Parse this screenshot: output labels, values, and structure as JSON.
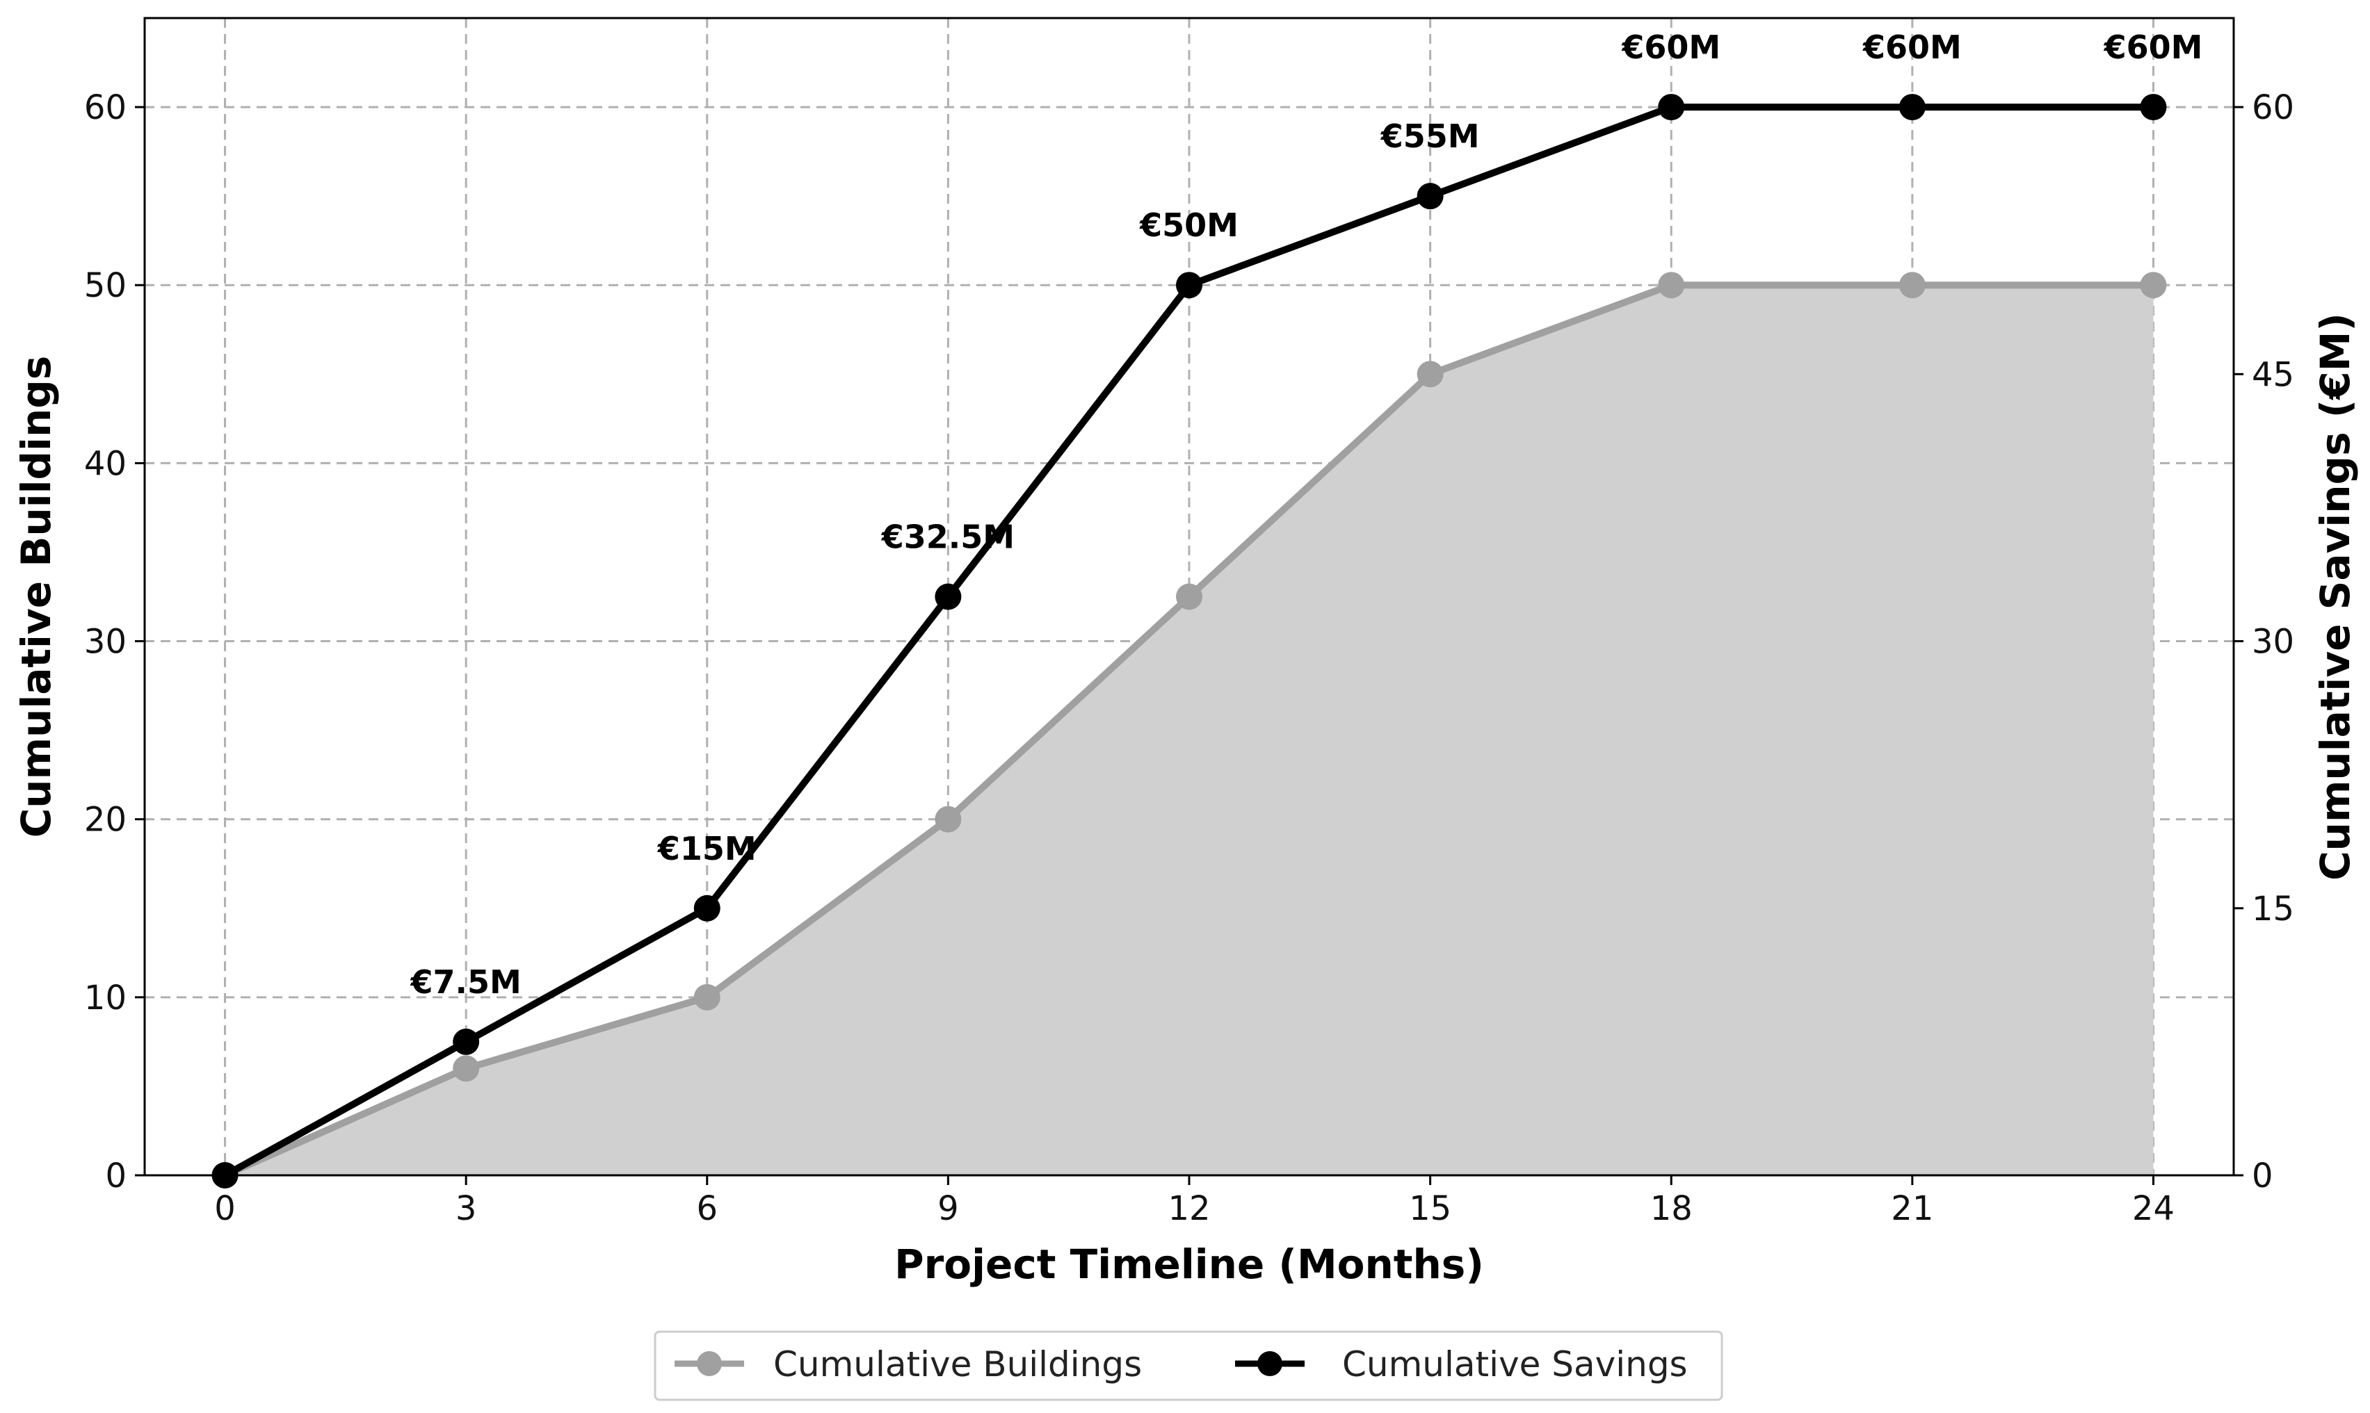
{
  "chart_data": {
    "type": "line",
    "x": [
      0,
      3,
      6,
      9,
      12,
      15,
      18,
      21,
      24
    ],
    "xticks": [
      0,
      3,
      6,
      9,
      12,
      15,
      18,
      21,
      24
    ],
    "xlim": [
      -1,
      25
    ],
    "xlabel": "Project Timeline (Months)",
    "ylabel_left": "Cumulative Buildings",
    "ylabel_right": "Cumulative Savings (€M)",
    "ylim_left": [
      0,
      65
    ],
    "ylim_right": [
      0,
      65
    ],
    "yticks_left": [
      0,
      10,
      20,
      30,
      40,
      50,
      60
    ],
    "yticks_right": [
      0,
      15,
      30,
      45,
      60
    ],
    "grid": true,
    "legend_position": "bottom-center",
    "series": [
      {
        "name": "Cumulative Buildings",
        "axis": "left",
        "color": "#a0a0a0",
        "fill": "#d0d0d0",
        "values": [
          0,
          6,
          10,
          20,
          32.5,
          45,
          50,
          50,
          50
        ]
      },
      {
        "name": "Cumulative Savings",
        "axis": "right",
        "color": "#000000",
        "values": [
          0,
          7.5,
          15,
          32.5,
          50,
          55,
          60,
          60,
          60
        ],
        "labels": [
          "",
          "€7.5M",
          "€15M",
          "€32.5M",
          "€50M",
          "€55M",
          "€60M",
          "€60M",
          "€60M"
        ]
      }
    ]
  }
}
